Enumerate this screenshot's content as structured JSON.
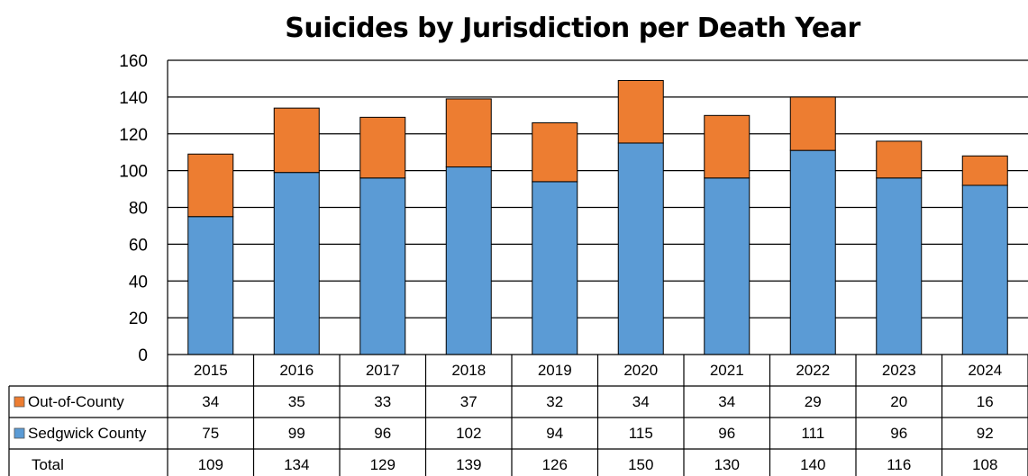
{
  "chart_data": {
    "type": "bar",
    "stacked": true,
    "title": "Suicides by Jurisdiction per Death Year",
    "categories": [
      "2015",
      "2016",
      "2017",
      "2018",
      "2019",
      "2020",
      "2021",
      "2022",
      "2023",
      "2024"
    ],
    "series": [
      {
        "name": "Out-of-County",
        "color": "#ED7D31",
        "values": [
          34,
          35,
          33,
          37,
          32,
          34,
          34,
          29,
          20,
          16
        ]
      },
      {
        "name": "Sedgwick County",
        "color": "#5B9BD5",
        "values": [
          75,
          99,
          96,
          102,
          94,
          115,
          96,
          111,
          96,
          92
        ]
      }
    ],
    "totals_label": "Total",
    "totals": [
      109,
      134,
      129,
      139,
      126,
      150,
      130,
      140,
      116,
      108
    ],
    "ylim": [
      0,
      160
    ],
    "yticks": [
      0,
      20,
      40,
      60,
      80,
      100,
      120,
      140,
      160
    ],
    "grid": true,
    "legend": "data-table"
  }
}
